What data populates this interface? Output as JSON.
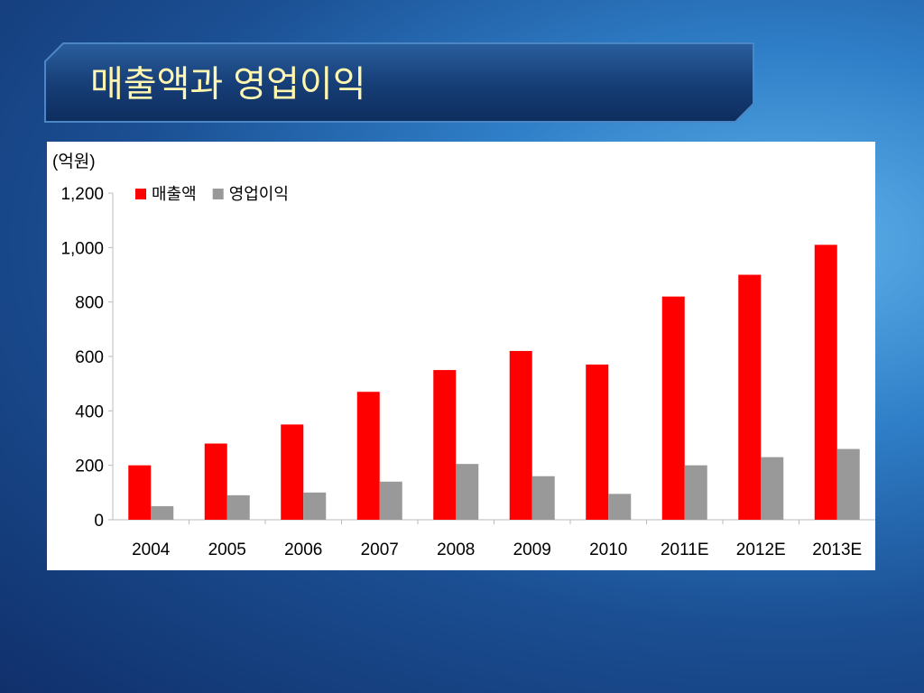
{
  "slide": {
    "title": "매출액과 영업이익"
  },
  "chart_data": {
    "type": "bar",
    "y_label": "(억원)",
    "categories": [
      "2004",
      "2005",
      "2006",
      "2007",
      "2008",
      "2009",
      "2010",
      "2011E",
      "2012E",
      "2013E"
    ],
    "series": [
      {
        "name": "매출액",
        "color": "#ff0000",
        "values": [
          200,
          280,
          350,
          470,
          550,
          620,
          570,
          820,
          900,
          1010
        ]
      },
      {
        "name": "영업이익",
        "color": "#999999",
        "values": [
          50,
          90,
          100,
          140,
          205,
          160,
          95,
          200,
          230,
          260
        ]
      }
    ],
    "ylim": [
      0,
      1200
    ],
    "yticks": [
      0,
      200,
      400,
      600,
      800,
      {
        "value": 1000,
        "label": "1,000"
      },
      {
        "value": 1200,
        "label": "1,200"
      }
    ],
    "grid": false,
    "legend": "top-left"
  }
}
